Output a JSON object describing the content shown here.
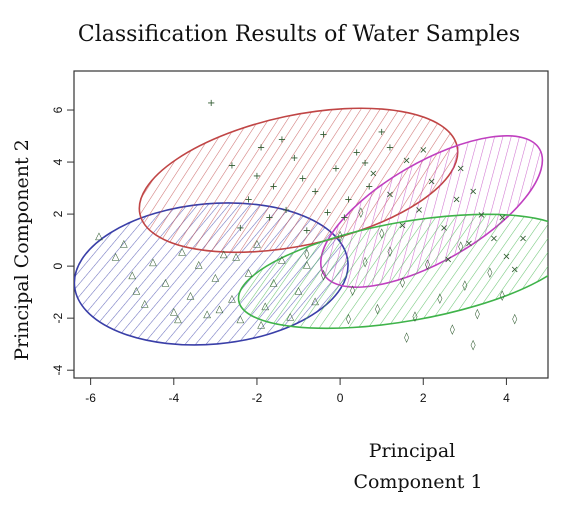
{
  "chart_data": {
    "type": "scatter",
    "title": "Classification Results of Water Samples",
    "xlabel_lines": [
      "Principal",
      "Component   1"
    ],
    "ylabel": "Principal Component   2",
    "xlim": [
      -6.4,
      5.0
    ],
    "ylim": [
      -4.3,
      7.5
    ],
    "xticks": [
      -6,
      -4,
      -2,
      0,
      2,
      4
    ],
    "yticks": [
      -4,
      -2,
      0,
      2,
      4,
      6
    ],
    "grid": false,
    "legend": "none",
    "clusters": [
      {
        "color": "#3a3fa8",
        "ellipse": {
          "cx": -3.1,
          "cy": -0.3,
          "rx": 3.3,
          "ry": 2.7,
          "angle": -5
        },
        "marker": "△",
        "points": [
          [
            -5.8,
            1.2
          ],
          [
            -5.4,
            0.4
          ],
          [
            -5.0,
            -0.3
          ],
          [
            -4.7,
            -1.4
          ],
          [
            -4.5,
            0.2
          ],
          [
            -4.2,
            -0.6
          ],
          [
            -4.0,
            -1.7
          ],
          [
            -3.8,
            0.6
          ],
          [
            -3.6,
            -1.1
          ],
          [
            -3.4,
            0.1
          ],
          [
            -3.2,
            -1.8
          ],
          [
            -3.0,
            -0.4
          ],
          [
            -2.8,
            0.5
          ],
          [
            -2.6,
            -1.2
          ],
          [
            -2.4,
            -2.0
          ],
          [
            -2.2,
            -0.2
          ],
          [
            -2.0,
            0.9
          ],
          [
            -1.8,
            -1.5
          ],
          [
            -1.6,
            -0.6
          ],
          [
            -1.4,
            0.3
          ],
          [
            -1.2,
            -1.9
          ],
          [
            -1.0,
            -0.9
          ],
          [
            -0.8,
            0.1
          ],
          [
            -0.6,
            -1.3
          ],
          [
            -4.9,
            -0.9
          ],
          [
            -3.9,
            -2.0
          ],
          [
            -2.9,
            -1.6
          ],
          [
            -1.9,
            -2.2
          ],
          [
            -5.2,
            0.9
          ],
          [
            -2.5,
            0.4
          ]
        ]
      },
      {
        "color": "#c04545",
        "ellipse": {
          "cx": -1.0,
          "cy": 3.3,
          "rx": 3.9,
          "ry": 2.5,
          "angle": -12
        },
        "marker": "+",
        "points": [
          [
            -3.1,
            6.3
          ],
          [
            -2.6,
            3.9
          ],
          [
            -2.2,
            2.6
          ],
          [
            -1.9,
            4.6
          ],
          [
            -1.6,
            3.1
          ],
          [
            -1.3,
            2.2
          ],
          [
            -1.1,
            4.2
          ],
          [
            -0.9,
            3.4
          ],
          [
            -0.6,
            2.9
          ],
          [
            -0.4,
            5.1
          ],
          [
            -0.1,
            3.8
          ],
          [
            0.2,
            2.6
          ],
          [
            0.4,
            4.4
          ],
          [
            0.7,
            3.1
          ],
          [
            1.0,
            5.2
          ],
          [
            1.2,
            4.6
          ],
          [
            -2.4,
            1.5
          ],
          [
            -1.7,
            1.9
          ],
          [
            -0.8,
            1.4
          ],
          [
            0.1,
            1.9
          ],
          [
            -2.0,
            3.5
          ],
          [
            -1.4,
            4.9
          ],
          [
            0.6,
            4.0
          ],
          [
            -0.3,
            2.1
          ]
        ]
      },
      {
        "color": "#c040c0",
        "ellipse": {
          "cx": 2.2,
          "cy": 2.1,
          "rx": 3.0,
          "ry": 1.9,
          "angle": -30
        },
        "marker": "×",
        "points": [
          [
            0.8,
            3.6
          ],
          [
            1.2,
            2.8
          ],
          [
            1.6,
            4.1
          ],
          [
            1.9,
            2.2
          ],
          [
            2.2,
            3.3
          ],
          [
            2.5,
            1.5
          ],
          [
            2.8,
            2.6
          ],
          [
            3.1,
            0.9
          ],
          [
            3.4,
            2.0
          ],
          [
            3.7,
            1.1
          ],
          [
            4.0,
            0.4
          ],
          [
            4.2,
            -0.1
          ],
          [
            3.9,
            1.9
          ],
          [
            2.0,
            4.5
          ],
          [
            1.5,
            1.6
          ],
          [
            2.6,
            0.3
          ],
          [
            3.2,
            2.9
          ],
          [
            4.4,
            1.1
          ],
          [
            2.9,
            3.8
          ]
        ]
      },
      {
        "color": "#3fb34a",
        "ellipse": {
          "cx": 1.6,
          "cy": -0.2,
          "rx": 4.1,
          "ry": 1.9,
          "angle": -10
        },
        "marker": "◊",
        "points": [
          [
            -0.8,
            0.5
          ],
          [
            -0.4,
            -0.3
          ],
          [
            0.0,
            1.2
          ],
          [
            0.3,
            -0.9
          ],
          [
            0.6,
            0.2
          ],
          [
            0.9,
            -1.6
          ],
          [
            1.2,
            0.6
          ],
          [
            1.5,
            -0.6
          ],
          [
            1.8,
            -1.9
          ],
          [
            2.1,
            0.1
          ],
          [
            2.4,
            -1.2
          ],
          [
            2.7,
            -2.4
          ],
          [
            3.0,
            -0.7
          ],
          [
            3.3,
            -1.8
          ],
          [
            3.6,
            -0.2
          ],
          [
            3.9,
            -1.1
          ],
          [
            4.2,
            -2.0
          ],
          [
            1.0,
            1.3
          ],
          [
            0.2,
            -2.0
          ],
          [
            2.9,
            0.8
          ],
          [
            1.6,
            -2.7
          ],
          [
            3.2,
            -3.0
          ],
          [
            0.5,
            2.1
          ]
        ]
      }
    ]
  }
}
